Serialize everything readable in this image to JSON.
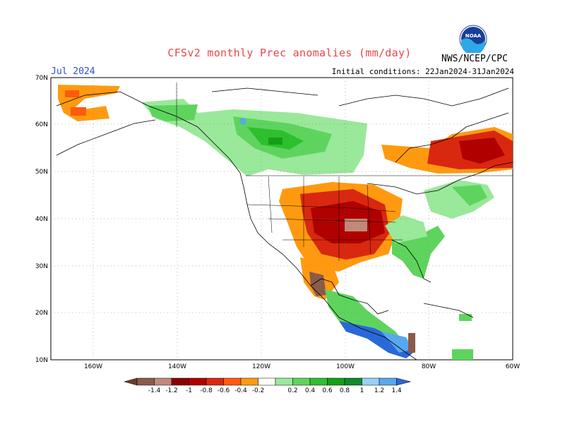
{
  "title": "CFSv2 monthly Prec anomalies (mm/day)",
  "month": "Jul 2024",
  "initial_conditions": "Initial conditions: 22Jan2024-31Jan2024",
  "agency": "NWS/NCEP/CPC",
  "logo_text": "NOAA",
  "lat_labels": [
    "70N",
    "60N",
    "50N",
    "40N",
    "30N",
    "20N",
    "10N"
  ],
  "lon_labels": [
    "160W",
    "140W",
    "120W",
    "100W",
    "80W",
    "60W"
  ],
  "colorbar": {
    "labels": [
      "-1.4",
      "-1.2",
      "-1",
      "-0.8",
      "-0.6",
      "-0.4",
      "-0.2",
      "0.2",
      "0.4",
      "0.6",
      "0.8",
      "1",
      "1.2",
      "1.4"
    ],
    "colors": [
      "#6f3b2a",
      "#8b5a4a",
      "#c1897a",
      "#8b0000",
      "#b00000",
      "#d92810",
      "#ff5a10",
      "#ff9a10",
      "#ffffff",
      "#9ae89a",
      "#5ed45e",
      "#2ebf2e",
      "#14a014",
      "#0f8a2a",
      "#9ad0f5",
      "#58a8ee",
      "#2a68d8"
    ]
  }
}
